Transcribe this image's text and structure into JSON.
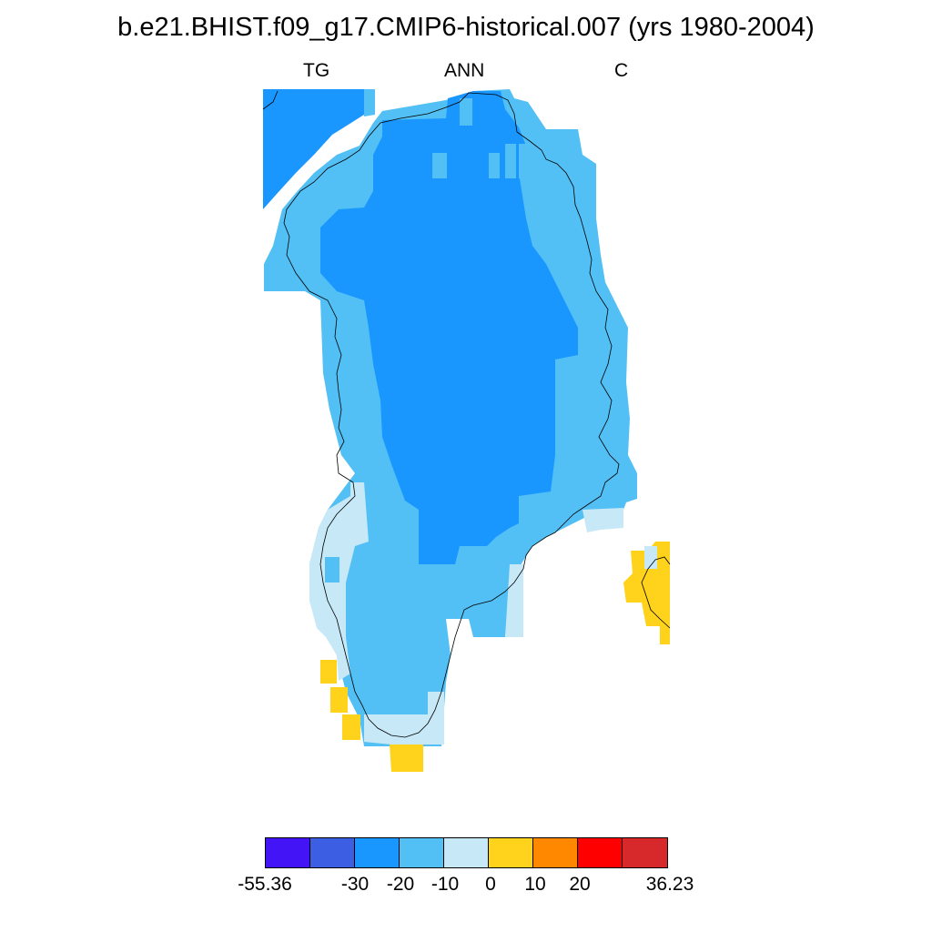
{
  "title": "b.e21.BHIST.f09_g17.CMIP6-historical.007 (yrs 1980-2004)",
  "subtitle": {
    "left": "TG",
    "center": "ANN",
    "right": "C"
  },
  "legend": {
    "colors": [
      "#4314f6",
      "#3b5ee3",
      "#1997ff",
      "#52c0f5",
      "#c7e8f7",
      "#ffd21c",
      "#ff8800",
      "#ff0000",
      "#d7292b"
    ],
    "labels": [
      "-55.36",
      "-30",
      "-20",
      "-10",
      "0",
      "10",
      "20",
      "36.23"
    ]
  },
  "map": {
    "variable": "TG",
    "region": "Greenland",
    "units": "C",
    "fill_colors": {
      "lt_-20": "#1997ff",
      "-20_to_-10": "#52c0f5",
      "-10_to_0": "#c7e8f7",
      "0_to_10": "#ffd21c"
    }
  }
}
